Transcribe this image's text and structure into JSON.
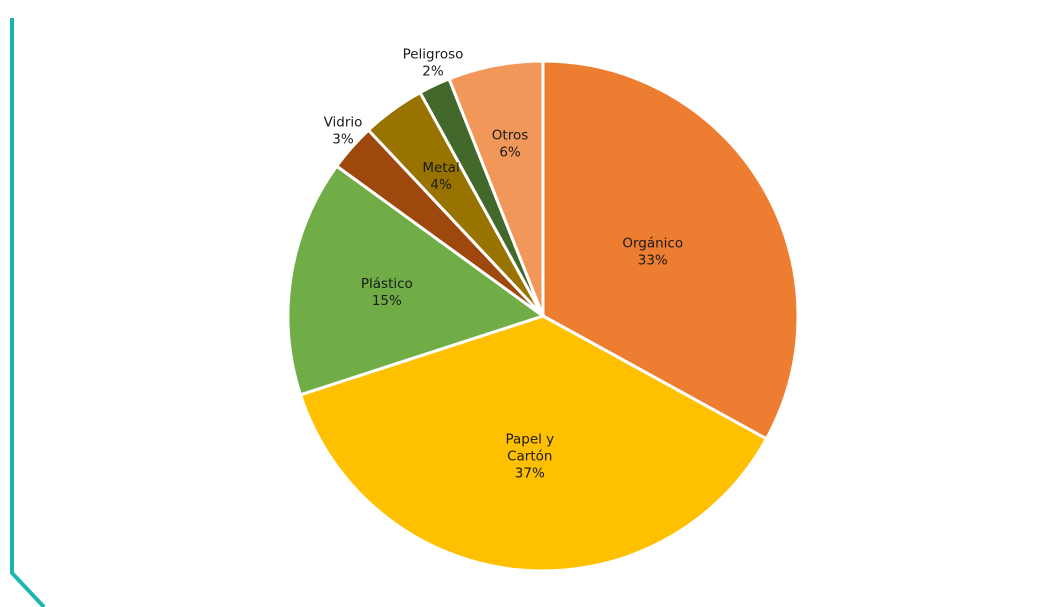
{
  "chart_data": {
    "type": "pie",
    "title": "",
    "slices": [
      {
        "name": "Orgánico",
        "label_lines": [
          "Orgánico"
        ],
        "percent_label": "33%",
        "value": 33,
        "color": "#ED7D31"
      },
      {
        "name": "Papel y Cartón",
        "label_lines": [
          "Papel y",
          "Cartón"
        ],
        "percent_label": "37%",
        "value": 37,
        "color": "#FFC000"
      },
      {
        "name": "Plástico",
        "label_lines": [
          "Plástico"
        ],
        "percent_label": "15%",
        "value": 15,
        "color": "#70AD47"
      },
      {
        "name": "Vidrio",
        "label_lines": [
          "Vidrio"
        ],
        "percent_label": "3%",
        "value": 3,
        "color": "#9E480E"
      },
      {
        "name": "Metal",
        "label_lines": [
          "Metal"
        ],
        "percent_label": "4%",
        "value": 4,
        "color": "#997300"
      },
      {
        "name": "Peligroso",
        "label_lines": [
          "Peligroso"
        ],
        "percent_label": "2%",
        "value": 2,
        "color": "#43682B"
      },
      {
        "name": "Otros",
        "label_lines": [
          "Otros"
        ],
        "percent_label": "6%",
        "value": 6,
        "color": "#F1975A"
      }
    ],
    "start_angle_deg": 0,
    "direction": "clockwise",
    "legend": "none"
  },
  "decoration": {
    "frame_line_color": "#1BB5B0"
  }
}
